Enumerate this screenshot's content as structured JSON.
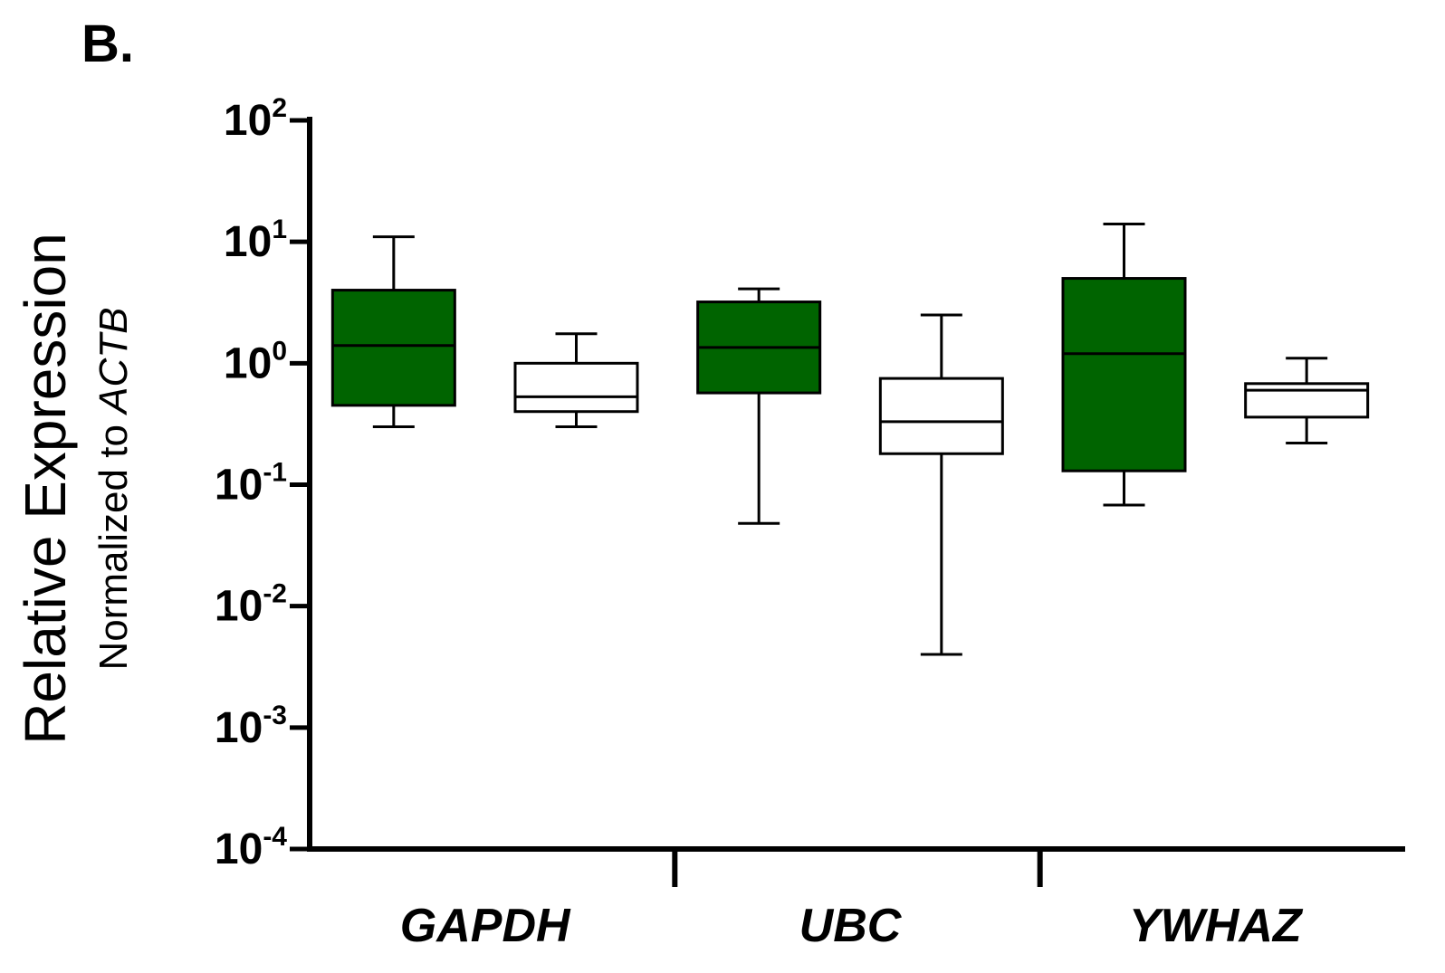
{
  "panel_label": "B.",
  "chart_data": {
    "type": "box",
    "ylabel": "Relative Expression",
    "ylabel_sub_prefix": "Normalized to ",
    "ylabel_sub_gene": "ACTB",
    "yscale": "log",
    "ylim": [
      0.0001,
      100
    ],
    "yticks": [
      {
        "base": "10",
        "exp": "2"
      },
      {
        "base": "10",
        "exp": "1"
      },
      {
        "base": "10",
        "exp": "0"
      },
      {
        "base": "10",
        "exp": "-1"
      },
      {
        "base": "10",
        "exp": "-2"
      },
      {
        "base": "10",
        "exp": "-3"
      },
      {
        "base": "10",
        "exp": "-4"
      }
    ],
    "categories": [
      "GAPDH",
      "UBC",
      "YWHAZ"
    ],
    "colors": {
      "filled": "#006400",
      "open": "#ffffff",
      "stroke": "#000000"
    },
    "boxes": [
      {
        "category": "GAPDH",
        "fill": "filled",
        "min": 0.3,
        "q1": 0.45,
        "median": 1.4,
        "q3": 4.0,
        "max": 11.0
      },
      {
        "category": "GAPDH",
        "fill": "open",
        "min": 0.3,
        "q1": 0.4,
        "median": 0.53,
        "q3": 1.0,
        "max": 1.75
      },
      {
        "category": "UBC",
        "fill": "filled",
        "min": 0.048,
        "q1": 0.57,
        "median": 1.35,
        "q3": 3.2,
        "max": 4.1
      },
      {
        "category": "UBC",
        "fill": "open",
        "min": 0.004,
        "q1": 0.18,
        "median": 0.33,
        "q3": 0.75,
        "max": 2.5
      },
      {
        "category": "YWHAZ",
        "fill": "filled",
        "min": 0.068,
        "q1": 0.13,
        "median": 1.2,
        "q3": 5.0,
        "max": 14.0
      },
      {
        "category": "YWHAZ",
        "fill": "open",
        "min": 0.22,
        "q1": 0.36,
        "median": 0.6,
        "q3": 0.68,
        "max": 1.1
      }
    ]
  }
}
